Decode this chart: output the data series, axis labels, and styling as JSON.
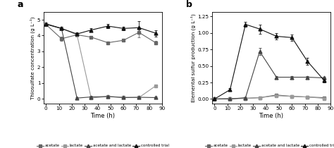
{
  "panel_a": {
    "title": "a",
    "xlabel": "Time (h)",
    "ylabel": "Thiosulfate concentration (g L⁻¹)",
    "xlim": [
      -2,
      90
    ],
    "ylim": [
      -0.3,
      5.5
    ],
    "yticks": [
      0,
      1,
      2,
      3,
      4,
      5
    ],
    "xticks": [
      0,
      10,
      20,
      30,
      40,
      50,
      60,
      70,
      80,
      90
    ],
    "series": {
      "acetate": {
        "x": [
          0,
          12,
          24,
          35,
          48,
          60,
          72,
          85
        ],
        "y": [
          4.7,
          3.8,
          4.05,
          3.9,
          3.55,
          3.7,
          4.2,
          3.55
        ],
        "yerr": [
          0.05,
          0.12,
          0.1,
          0.08,
          0.08,
          0.1,
          0.3,
          0.1
        ],
        "color": "#666666",
        "marker": "s",
        "markersize": 3.0,
        "linestyle": "-"
      },
      "lactate": {
        "x": [
          0,
          12,
          24,
          35,
          48,
          60,
          72,
          85
        ],
        "y": [
          4.72,
          4.45,
          4.05,
          0.05,
          0.15,
          0.1,
          0.08,
          0.82
        ],
        "yerr": [
          0.05,
          0.08,
          0.1,
          0.05,
          0.08,
          0.05,
          0.05,
          0.1
        ],
        "color": "#999999",
        "marker": "s",
        "markersize": 3.0,
        "linestyle": "-"
      },
      "acetate_and_lactate": {
        "x": [
          0,
          12,
          24,
          35,
          48,
          60,
          72,
          85
        ],
        "y": [
          4.75,
          4.45,
          0.05,
          0.12,
          0.15,
          0.08,
          0.1,
          0.08
        ],
        "yerr": [
          0.05,
          0.08,
          0.05,
          0.05,
          0.08,
          0.05,
          0.05,
          0.05
        ],
        "color": "#444444",
        "marker": "^",
        "markersize": 3.5,
        "linestyle": "-"
      },
      "controlled_trial": {
        "x": [
          0,
          12,
          24,
          35,
          48,
          60,
          72,
          85
        ],
        "y": [
          4.72,
          4.45,
          4.1,
          4.35,
          4.6,
          4.45,
          4.5,
          4.15
        ],
        "yerr": [
          0.05,
          0.08,
          0.1,
          0.1,
          0.15,
          0.1,
          0.4,
          0.2
        ],
        "color": "#111111",
        "marker": "^",
        "markersize": 3.5,
        "linestyle": "-"
      }
    }
  },
  "panel_b": {
    "title": "b",
    "xlabel": "Time (h)",
    "ylabel": "Elemental sulfur production (g L⁻¹)",
    "xlim": [
      -2,
      90
    ],
    "ylim": [
      -0.07,
      1.32
    ],
    "yticks": [
      0.0,
      0.25,
      0.5,
      0.75,
      1.0,
      1.25
    ],
    "xticks": [
      0,
      10,
      20,
      30,
      40,
      50,
      60,
      70,
      80,
      90
    ],
    "series": {
      "acetate": {
        "x": [
          0,
          12,
          24,
          35,
          48,
          60,
          72,
          85
        ],
        "y": [
          0.0,
          0.005,
          0.01,
          0.02,
          0.06,
          0.04,
          0.03,
          0.02
        ],
        "yerr": [
          0.003,
          0.003,
          0.005,
          0.01,
          0.02,
          0.01,
          0.01,
          0.01
        ],
        "color": "#666666",
        "marker": "s",
        "markersize": 3.0,
        "linestyle": "-"
      },
      "lactate": {
        "x": [
          0,
          12,
          24,
          35,
          48,
          60,
          72,
          85
        ],
        "y": [
          0.0,
          0.005,
          0.01,
          0.02,
          0.05,
          0.04,
          0.03,
          0.01
        ],
        "yerr": [
          0.003,
          0.003,
          0.005,
          0.01,
          0.015,
          0.01,
          0.01,
          0.005
        ],
        "color": "#999999",
        "marker": "s",
        "markersize": 3.0,
        "linestyle": "-"
      },
      "acetate_and_lactate": {
        "x": [
          0,
          12,
          24,
          35,
          48,
          60,
          72,
          85
        ],
        "y": [
          0.0,
          0.0,
          0.02,
          0.72,
          0.33,
          0.33,
          0.33,
          0.32
        ],
        "yerr": [
          0.003,
          0.003,
          0.01,
          0.05,
          0.02,
          0.02,
          0.02,
          0.02
        ],
        "color": "#444444",
        "marker": "^",
        "markersize": 3.5,
        "linestyle": "-"
      },
      "controlled_trial": {
        "x": [
          0,
          12,
          24,
          35,
          48,
          60,
          72,
          85
        ],
        "y": [
          0.0,
          0.14,
          1.13,
          1.06,
          0.95,
          0.93,
          0.57,
          0.28
        ],
        "yerr": [
          0.003,
          0.02,
          0.04,
          0.07,
          0.05,
          0.05,
          0.05,
          0.03
        ],
        "color": "#111111",
        "marker": "^",
        "markersize": 3.5,
        "linestyle": "-"
      }
    }
  },
  "legend": {
    "labels": [
      "acetate",
      "lactate",
      "acetate and lactate",
      "controlled trial"
    ],
    "colors": [
      "#666666",
      "#999999",
      "#444444",
      "#111111"
    ],
    "markers": [
      "s",
      "s",
      "^",
      "^"
    ],
    "markersizes": [
      3.0,
      3.0,
      3.5,
      3.5
    ]
  },
  "background_color": "#ffffff"
}
